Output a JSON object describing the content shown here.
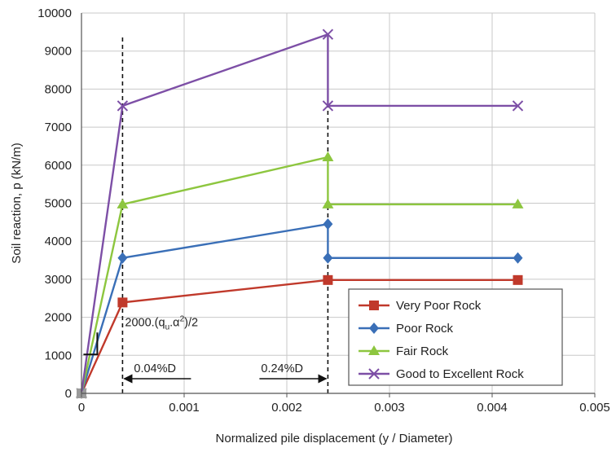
{
  "chart_data": {
    "type": "line",
    "title": "",
    "xlabel": "Normalized pile displacement (y / Diameter)",
    "ylabel": "Soil reaction, p (kN/m)",
    "xlim": [
      0,
      0.005
    ],
    "ylim": [
      0,
      10000
    ],
    "x_ticks": [
      0,
      0.001,
      0.002,
      0.003,
      0.004,
      0.005
    ],
    "x_tick_labels": [
      "0",
      "0.001",
      "0.002",
      "0.003",
      "0.004",
      "0.005"
    ],
    "y_ticks": [
      0,
      1000,
      2000,
      3000,
      4000,
      5000,
      6000,
      7000,
      8000,
      9000,
      10000
    ],
    "y_tick_labels": [
      "0",
      "1000",
      "2000",
      "3000",
      "4000",
      "5000",
      "6000",
      "7000",
      "8000",
      "9000",
      "10000"
    ],
    "grid": true,
    "legend_position": "bottom-right",
    "series": [
      {
        "name": "Very Poor Rock",
        "color": "#c0392b",
        "marker": "square",
        "points": [
          [
            0,
            0
          ],
          [
            0.0004,
            2390
          ],
          [
            0.0024,
            2980
          ],
          [
            0.0024,
            2980
          ],
          [
            0.00425,
            2980
          ]
        ]
      },
      {
        "name": "Poor Rock",
        "color": "#3a6fb7",
        "marker": "diamond",
        "points": [
          [
            0,
            0
          ],
          [
            0.0004,
            3560
          ],
          [
            0.0024,
            4450
          ],
          [
            0.0024,
            3560
          ],
          [
            0.00425,
            3560
          ]
        ]
      },
      {
        "name": "Fair Rock",
        "color": "#8dc63f",
        "marker": "triangle",
        "points": [
          [
            0,
            0
          ],
          [
            0.0004,
            4970
          ],
          [
            0.0024,
            6210
          ],
          [
            0.0024,
            4970
          ],
          [
            0.00425,
            4970
          ]
        ]
      },
      {
        "name": "Good to Excellent Rock",
        "color": "#7d4fa6",
        "marker": "x",
        "points": [
          [
            0,
            0
          ],
          [
            0.0004,
            7560
          ],
          [
            0.0024,
            9440
          ],
          [
            0.0024,
            7560
          ],
          [
            0.00425,
            7560
          ]
        ]
      }
    ],
    "reference_lines_x": [
      0.0004,
      0.0024
    ],
    "annotations": {
      "slope_label_main": "2000.(q",
      "slope_label_sub": "u",
      "slope_label_mid": ".α",
      "slope_label_sup": "2",
      "slope_label_end": ")/2",
      "arrow_left_label": "0.04%D",
      "arrow_right_label": "0.24%D"
    }
  }
}
